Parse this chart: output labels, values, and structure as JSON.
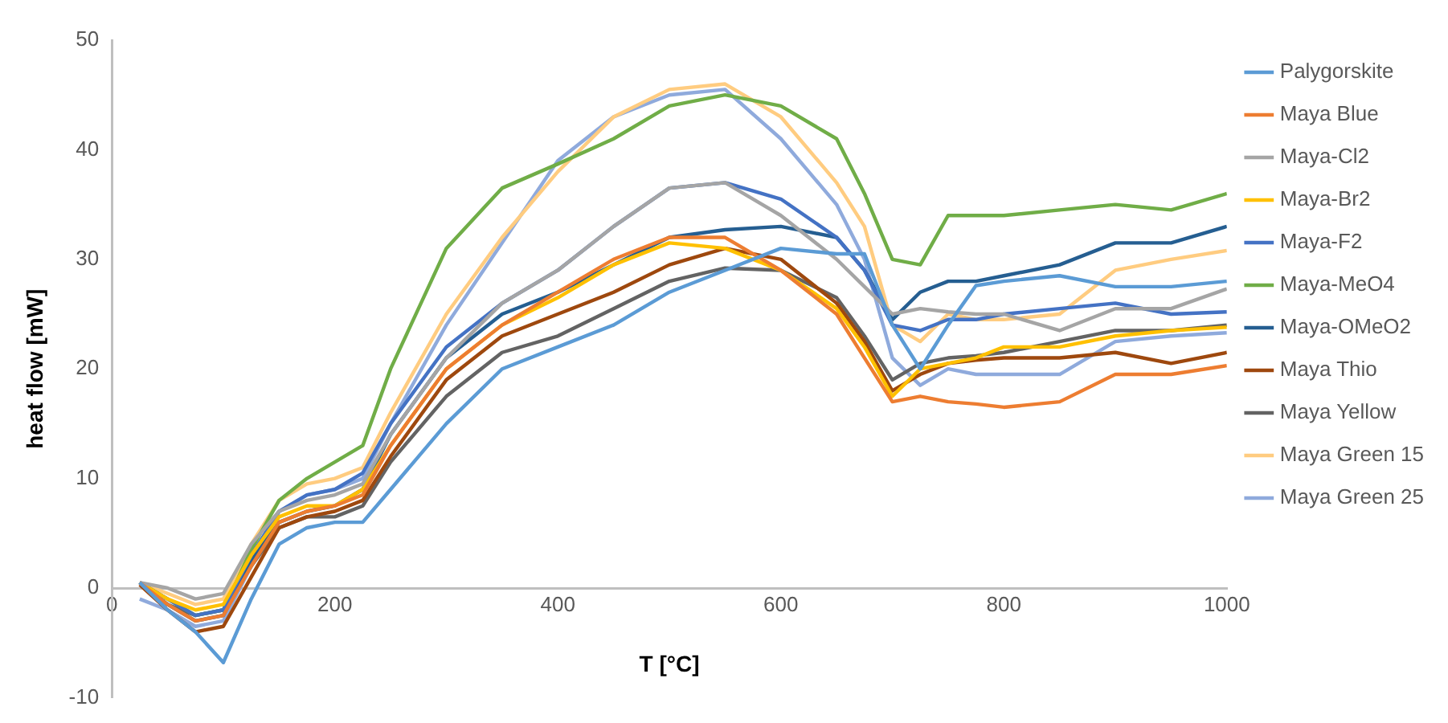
{
  "chart_data": {
    "type": "line",
    "xlabel": "T [°C]",
    "ylabel": "heat flow [mW]",
    "x": [
      25,
      50,
      75,
      100,
      125,
      150,
      175,
      200,
      225,
      250,
      300,
      350,
      400,
      450,
      500,
      550,
      600,
      650,
      675,
      700,
      725,
      750,
      775,
      800,
      850,
      900,
      950,
      1000
    ],
    "xlim": [
      0,
      1000
    ],
    "xticks": [
      0,
      200,
      400,
      600,
      800,
      1000
    ],
    "ylim": [
      -10,
      50
    ],
    "yticks": [
      -10,
      0,
      10,
      20,
      30,
      40,
      50
    ],
    "grid": false,
    "legend": "right",
    "marker": "none",
    "line_style": "solid",
    "series": [
      {
        "name": "Palygorskite",
        "color": "#5b9bd5",
        "values": [
          0.5,
          -2,
          -4,
          -6.8,
          -1,
          4,
          5.5,
          6,
          6,
          9,
          15,
          20,
          22,
          24,
          27,
          29,
          31,
          30.5,
          30.5,
          24,
          20,
          24,
          27.6,
          28,
          28.5,
          27.5,
          27.5,
          28
        ]
      },
      {
        "name": "Maya Blue",
        "color": "#ed7d31",
        "values": [
          0.5,
          -1.5,
          -3,
          -2.5,
          2,
          6,
          7,
          7.5,
          8.5,
          13,
          20,
          24,
          27,
          30,
          32,
          32,
          29,
          25,
          21,
          17,
          17.5,
          17,
          16.8,
          16.5,
          17,
          19.5,
          19.5,
          20.3
        ]
      },
      {
        "name": "Maya-Cl2",
        "color": "#a5a5a5",
        "values": [
          0.5,
          0,
          -1,
          -0.5,
          4,
          7,
          8,
          8.5,
          9.5,
          14,
          21,
          26,
          29,
          33,
          36.5,
          37,
          34,
          30,
          27.5,
          25,
          25.5,
          25.2,
          25,
          25,
          23.5,
          25.5,
          25.5,
          27.3
        ]
      },
      {
        "name": "Maya-Br2",
        "color": "#ffc000",
        "values": [
          0.5,
          -1,
          -2,
          -1.5,
          3,
          6.5,
          7.5,
          7.5,
          9,
          13,
          20,
          24,
          26.5,
          29.5,
          31.5,
          31,
          29,
          25.5,
          22,
          17.5,
          20,
          20.5,
          21,
          22,
          22,
          23,
          23.5,
          23.8
        ]
      },
      {
        "name": "Maya-F2",
        "color": "#4472c4",
        "values": [
          0.5,
          -1,
          -2.5,
          -2,
          3,
          7,
          8.5,
          9,
          10.5,
          15,
          22,
          26,
          29,
          33,
          36.5,
          37,
          35.5,
          32,
          29,
          24,
          23.5,
          24.5,
          24.5,
          25,
          25.5,
          26,
          25,
          25.2
        ]
      },
      {
        "name": "Maya-MeO4",
        "color": "#70ad47",
        "values": [
          0.5,
          -1,
          -2.5,
          -2,
          3.5,
          8,
          10,
          11.5,
          13,
          20,
          31,
          36.5,
          38.7,
          41,
          44,
          45,
          44,
          41,
          36,
          30,
          29.5,
          34,
          34,
          34,
          34.5,
          35,
          34.5,
          36
        ]
      },
      {
        "name": "Maya-OMeO2",
        "color": "#255e91",
        "values": [
          0.5,
          -1.5,
          -3,
          -2.5,
          2.5,
          6,
          7,
          7.5,
          9,
          14,
          21,
          25,
          27,
          29.5,
          32,
          32.7,
          33,
          32,
          29,
          24.5,
          27,
          28,
          28,
          28.5,
          29.5,
          31.5,
          31.5,
          33
        ]
      },
      {
        "name": "Maya Thio",
        "color": "#9e480e",
        "values": [
          0.3,
          -2,
          -4,
          -3.5,
          1,
          5.5,
          6.5,
          7,
          8,
          12,
          19,
          23,
          25,
          27,
          29.5,
          31,
          30,
          26,
          22.5,
          18,
          19.5,
          20.5,
          20.8,
          21,
          21,
          21.5,
          20.5,
          21.5
        ]
      },
      {
        "name": "Maya Yellow",
        "color": "#636363",
        "values": [
          0.5,
          -1.5,
          -2.5,
          -2,
          2,
          5.5,
          6.5,
          6.5,
          7.5,
          11.5,
          17.5,
          21.5,
          23,
          25.5,
          28,
          29.2,
          29,
          26.5,
          23,
          19,
          20.5,
          21,
          21.2,
          21.5,
          22.5,
          23.5,
          23.5,
          24
        ]
      },
      {
        "name": "Maya Green 15",
        "color": "#ffcc80",
        "values": [
          0.5,
          -0.5,
          -1.5,
          -1,
          4,
          8,
          9.5,
          10,
          11,
          16,
          25,
          32,
          38,
          43,
          45.5,
          46,
          43,
          37,
          33,
          24,
          22.5,
          25,
          24.5,
          24.5,
          25,
          29,
          30,
          30.8
        ]
      },
      {
        "name": "Maya Green 25",
        "color": "#8faadc",
        "values": [
          -1,
          -2,
          -3.5,
          -3,
          2,
          7,
          8.5,
          9,
          10,
          15,
          24,
          31.5,
          39,
          43,
          45,
          45.5,
          41,
          35,
          30,
          21,
          18.5,
          20,
          19.5,
          19.5,
          19.5,
          22.5,
          23,
          23.3
        ]
      }
    ]
  }
}
